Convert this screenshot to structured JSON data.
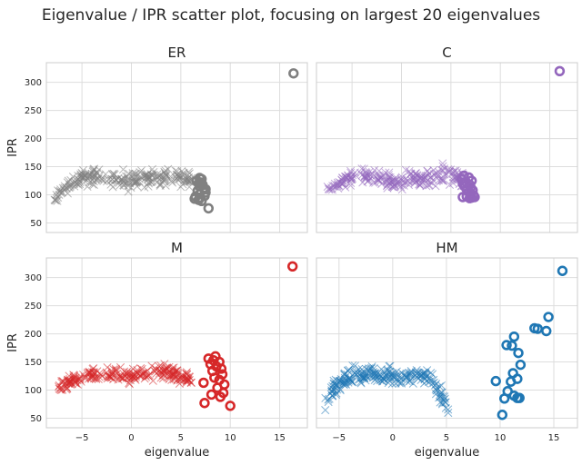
{
  "figure": {
    "title": "Eigenvalue / IPR scatter plot, focusing on largest 20 eigenvalues"
  },
  "chart_data": [
    {
      "type": "scatter",
      "title": "ER",
      "xlabel": "",
      "ylabel": "IPR",
      "xlim": [
        -8.6,
        17.8
      ],
      "ylim": [
        33,
        335
      ],
      "xticks": [
        -5,
        0,
        5,
        10,
        15
      ],
      "yticks": [
        50,
        100,
        150,
        200,
        250,
        300
      ],
      "show_xtick_labels": false,
      "show_ytick_labels": true,
      "grid": true,
      "color": "#808080",
      "bulk": {
        "x_range": [
          -7.8,
          6.2
        ],
        "ipr_band": [
          [
            -7.8,
            80,
            112
          ],
          [
            -6.5,
            98,
            130
          ],
          [
            -5.0,
            110,
            150
          ],
          [
            -3.0,
            112,
            155
          ],
          [
            -1.0,
            100,
            150
          ],
          [
            1.0,
            105,
            150
          ],
          [
            3.0,
            110,
            152
          ],
          [
            5.0,
            108,
            158
          ],
          [
            6.2,
            98,
            145
          ]
        ]
      },
      "top_points": [
        {
          "x": 16.4,
          "y": 316
        },
        {
          "x": 6.9,
          "y": 130
        },
        {
          "x": 7.1,
          "y": 128
        },
        {
          "x": 6.6,
          "y": 125
        },
        {
          "x": 7.0,
          "y": 122
        },
        {
          "x": 6.8,
          "y": 120
        },
        {
          "x": 7.2,
          "y": 118
        },
        {
          "x": 6.9,
          "y": 115
        },
        {
          "x": 7.3,
          "y": 112
        },
        {
          "x": 7.5,
          "y": 110
        },
        {
          "x": 6.7,
          "y": 107
        },
        {
          "x": 7.5,
          "y": 104
        },
        {
          "x": 6.9,
          "y": 101
        },
        {
          "x": 7.4,
          "y": 98
        },
        {
          "x": 6.5,
          "y": 97
        },
        {
          "x": 6.9,
          "y": 95
        },
        {
          "x": 6.4,
          "y": 93
        },
        {
          "x": 6.8,
          "y": 91
        },
        {
          "x": 7.1,
          "y": 89
        },
        {
          "x": 7.8,
          "y": 76
        }
      ]
    },
    {
      "type": "scatter",
      "title": "C",
      "xlabel": "",
      "ylabel": "",
      "xlim": [
        -8.6,
        17.8
      ],
      "ylim": [
        33,
        335
      ],
      "xticks": [
        -5,
        0,
        5,
        10,
        15
      ],
      "yticks": [
        50,
        100,
        150,
        200,
        250,
        300
      ],
      "show_xtick_labels": false,
      "show_ytick_labels": false,
      "grid": true,
      "color": "#9467bd",
      "bulk": {
        "x_range": [
          -7.6,
          6.6
        ],
        "ipr_band": [
          [
            -7.6,
            95,
            118
          ],
          [
            -6.5,
            105,
            135
          ],
          [
            -5.0,
            112,
            150
          ],
          [
            -3.0,
            112,
            152
          ],
          [
            -1.0,
            105,
            145
          ],
          [
            1.0,
            108,
            150
          ],
          [
            3.0,
            112,
            150
          ],
          [
            4.8,
            110,
            168
          ],
          [
            6.6,
            100,
            140
          ]
        ]
      },
      "top_points": [
        {
          "x": 16.0,
          "y": 320
        },
        {
          "x": 6.3,
          "y": 134
        },
        {
          "x": 6.8,
          "y": 131
        },
        {
          "x": 6.1,
          "y": 128
        },
        {
          "x": 7.1,
          "y": 125
        },
        {
          "x": 6.5,
          "y": 123
        },
        {
          "x": 6.2,
          "y": 120
        },
        {
          "x": 6.9,
          "y": 118
        },
        {
          "x": 6.4,
          "y": 115
        },
        {
          "x": 7.0,
          "y": 113
        },
        {
          "x": 6.6,
          "y": 110
        },
        {
          "x": 7.2,
          "y": 108
        },
        {
          "x": 6.8,
          "y": 105
        },
        {
          "x": 7.0,
          "y": 101
        },
        {
          "x": 7.3,
          "y": 99
        },
        {
          "x": 6.6,
          "y": 97
        },
        {
          "x": 7.4,
          "y": 96
        },
        {
          "x": 6.2,
          "y": 96
        },
        {
          "x": 7.1,
          "y": 95
        },
        {
          "x": 6.9,
          "y": 94
        }
      ]
    },
    {
      "type": "scatter",
      "title": "M",
      "xlabel": "eigenvalue",
      "ylabel": "IPR",
      "xlim": [
        -8.6,
        17.8
      ],
      "ylim": [
        33,
        335
      ],
      "xticks": [
        -5,
        0,
        5,
        10,
        15
      ],
      "yticks": [
        50,
        100,
        150,
        200,
        250,
        300
      ],
      "show_xtick_labels": true,
      "show_ytick_labels": true,
      "grid": true,
      "color": "#d62728",
      "bulk": {
        "x_range": [
          -7.4,
          6.2
        ],
        "ipr_band": [
          [
            -7.4,
            85,
            120
          ],
          [
            -6.0,
            98,
            132
          ],
          [
            -4.5,
            108,
            142
          ],
          [
            -2.5,
            112,
            145
          ],
          [
            -0.5,
            105,
            142
          ],
          [
            1.5,
            108,
            148
          ],
          [
            3.5,
            110,
            152
          ],
          [
            5.0,
            105,
            148
          ],
          [
            6.2,
            100,
            135
          ]
        ]
      },
      "top_points": [
        {
          "x": 16.3,
          "y": 320
        },
        {
          "x": 8.5,
          "y": 160
        },
        {
          "x": 7.8,
          "y": 156
        },
        {
          "x": 8.3,
          "y": 153
        },
        {
          "x": 8.9,
          "y": 150
        },
        {
          "x": 8.0,
          "y": 146
        },
        {
          "x": 8.6,
          "y": 142
        },
        {
          "x": 9.1,
          "y": 138
        },
        {
          "x": 8.2,
          "y": 134
        },
        {
          "x": 9.2,
          "y": 128
        },
        {
          "x": 8.4,
          "y": 122
        },
        {
          "x": 8.9,
          "y": 118
        },
        {
          "x": 7.3,
          "y": 113
        },
        {
          "x": 9.4,
          "y": 110
        },
        {
          "x": 8.7,
          "y": 104
        },
        {
          "x": 9.3,
          "y": 95
        },
        {
          "x": 8.1,
          "y": 92
        },
        {
          "x": 9.0,
          "y": 88
        },
        {
          "x": 7.4,
          "y": 77
        },
        {
          "x": 10.0,
          "y": 72
        }
      ]
    },
    {
      "type": "scatter",
      "title": "HM",
      "xlabel": "eigenvalue",
      "ylabel": "",
      "xlim": [
        -7.1,
        17.2
      ],
      "ylim": [
        33,
        335
      ],
      "xticks": [
        -5,
        0,
        5,
        10,
        15
      ],
      "yticks": [
        50,
        100,
        150,
        200,
        250,
        300
      ],
      "show_xtick_labels": true,
      "show_ytick_labels": false,
      "grid": true,
      "color": "#1f77b4",
      "bulk": {
        "x_range": [
          -6.3,
          5.2
        ],
        "ipr_band": [
          [
            -6.3,
            55,
            95
          ],
          [
            -5.5,
            80,
            125
          ],
          [
            -4.0,
            100,
            150
          ],
          [
            -2.0,
            105,
            150
          ],
          [
            0.0,
            100,
            145
          ],
          [
            2.0,
            105,
            148
          ],
          [
            3.5,
            100,
            145
          ],
          [
            4.5,
            60,
            120
          ],
          [
            5.2,
            50,
            75
          ]
        ]
      },
      "top_points": [
        {
          "x": 15.8,
          "y": 312
        },
        {
          "x": 14.5,
          "y": 230
        },
        {
          "x": 13.2,
          "y": 210
        },
        {
          "x": 13.5,
          "y": 209
        },
        {
          "x": 14.3,
          "y": 205
        },
        {
          "x": 11.3,
          "y": 195
        },
        {
          "x": 10.6,
          "y": 180
        },
        {
          "x": 11.1,
          "y": 179
        },
        {
          "x": 11.7,
          "y": 166
        },
        {
          "x": 11.9,
          "y": 145
        },
        {
          "x": 11.2,
          "y": 130
        },
        {
          "x": 11.6,
          "y": 120
        },
        {
          "x": 9.6,
          "y": 116
        },
        {
          "x": 11.0,
          "y": 115
        },
        {
          "x": 10.7,
          "y": 98
        },
        {
          "x": 11.3,
          "y": 90
        },
        {
          "x": 11.8,
          "y": 86
        },
        {
          "x": 11.6,
          "y": 86
        },
        {
          "x": 10.4,
          "y": 85
        },
        {
          "x": 10.2,
          "y": 56
        }
      ]
    }
  ]
}
